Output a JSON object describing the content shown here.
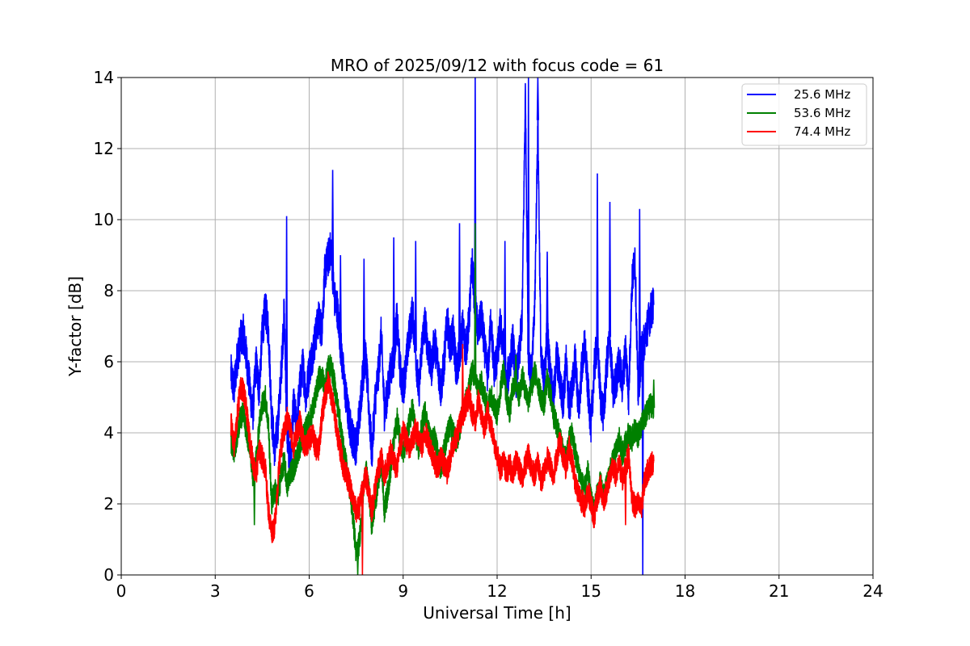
{
  "chart_data": {
    "type": "line",
    "title": "MRO of 2025/09/12 with focus code = 61",
    "xlabel": "Universal Time [h]",
    "ylabel": "Y-factor [dB]",
    "xlim": [
      0,
      24
    ],
    "ylim": [
      0,
      14
    ],
    "xticks": [
      0,
      3,
      6,
      9,
      12,
      15,
      18,
      21,
      24
    ],
    "yticks": [
      0,
      2,
      4,
      6,
      8,
      10,
      12,
      14
    ],
    "grid": true,
    "legend_position": "top-right",
    "series": [
      {
        "name": "25.6 MHz",
        "color": "#0000ff",
        "x": [
          3.5,
          3.6,
          3.7,
          3.8,
          3.9,
          4.0,
          4.1,
          4.2,
          4.3,
          4.4,
          4.5,
          4.6,
          4.7,
          4.8,
          4.9,
          5.0,
          5.1,
          5.2,
          5.3,
          5.4,
          5.5,
          5.6,
          5.7,
          5.8,
          5.9,
          6.0,
          6.1,
          6.2,
          6.3,
          6.4,
          6.5,
          6.6,
          6.7,
          6.8,
          6.9,
          7.0,
          7.1,
          7.2,
          7.3,
          7.4,
          7.5,
          7.6,
          7.7,
          7.8,
          7.9,
          8.0,
          8.1,
          8.2,
          8.3,
          8.4,
          8.5,
          8.6,
          8.7,
          8.8,
          8.9,
          9.0,
          9.1,
          9.2,
          9.3,
          9.4,
          9.5,
          9.6,
          9.7,
          9.8,
          9.9,
          10.0,
          10.1,
          10.2,
          10.3,
          10.4,
          10.5,
          10.6,
          10.7,
          10.8,
          10.9,
          11.0,
          11.1,
          11.2,
          11.3,
          11.4,
          11.5,
          11.6,
          11.7,
          11.8,
          11.9,
          12.0,
          12.1,
          12.2,
          12.3,
          12.4,
          12.5,
          12.6,
          12.7,
          12.8,
          12.9,
          13.0,
          13.1,
          13.2,
          13.3,
          13.4,
          13.5,
          13.6,
          13.7,
          13.8,
          13.9,
          14.0,
          14.1,
          14.2,
          14.3,
          14.4,
          14.5,
          14.6,
          14.7,
          14.8,
          14.9,
          15.0,
          15.1,
          15.2,
          15.3,
          15.4,
          15.5,
          15.6,
          15.7,
          15.8,
          15.9,
          16.0,
          16.1,
          16.2,
          16.3,
          16.4,
          16.5,
          16.6,
          16.7,
          16.8,
          16.9,
          17.0
        ],
        "y": [
          5.7,
          5.2,
          6.1,
          6.6,
          6.8,
          6.1,
          5.3,
          4.5,
          6.0,
          5.2,
          6.8,
          7.5,
          6.9,
          4.5,
          3.5,
          4.2,
          5.6,
          7.4,
          3.9,
          3.1,
          4.8,
          4.2,
          5.3,
          5.9,
          5.0,
          5.8,
          6.2,
          6.7,
          7.2,
          6.9,
          8.5,
          8.9,
          9.2,
          7.8,
          7.5,
          6.5,
          5.6,
          4.8,
          4.2,
          3.8,
          3.6,
          4.5,
          5.5,
          6.2,
          4.8,
          3.4,
          4.9,
          5.6,
          6.8,
          4.6,
          5.1,
          5.8,
          6.1,
          7.2,
          5.8,
          5.2,
          6.0,
          6.8,
          7.4,
          6.3,
          5.1,
          6.5,
          7.1,
          6.3,
          5.8,
          6.6,
          6.0,
          5.2,
          5.9,
          7.2,
          6.4,
          6.8,
          5.7,
          6.2,
          7.0,
          6.3,
          7.1,
          8.8,
          7.5,
          6.8,
          7.3,
          6.4,
          5.6,
          7.2,
          5.8,
          6.1,
          7.0,
          6.4,
          5.3,
          5.9,
          6.6,
          5.5,
          6.1,
          7.3,
          13.5,
          6.2,
          5.6,
          7.5,
          12.8,
          6.0,
          5.4,
          6.9,
          5.6,
          4.9,
          6.2,
          5.5,
          4.8,
          6.0,
          4.7,
          5.3,
          6.1,
          4.6,
          5.8,
          6.5,
          5.2,
          4.2,
          5.8,
          6.6,
          5.0,
          4.5,
          5.9,
          6.7,
          5.1,
          5.5,
          6.0,
          5.3,
          6.4,
          5.0,
          8.1,
          9.0,
          5.1,
          6.2,
          6.6,
          7.0,
          7.4,
          7.6
        ],
        "spikes": [
          [
            5.28,
            10.1
          ],
          [
            6.75,
            11.4
          ],
          [
            7.0,
            9.0
          ],
          [
            7.75,
            8.9
          ],
          [
            8.7,
            9.5
          ],
          [
            9.4,
            9.4
          ],
          [
            10.8,
            9.9
          ],
          [
            11.3,
            14.0
          ],
          [
            12.25,
            9.4
          ],
          [
            13.0,
            14.0
          ],
          [
            13.3,
            14.0
          ],
          [
            13.6,
            9.1
          ],
          [
            15.2,
            11.3
          ],
          [
            15.6,
            10.5
          ],
          [
            16.55,
            10.3
          ],
          [
            16.65,
            0.0
          ]
        ]
      },
      {
        "name": "53.6 MHz",
        "color": "#008000",
        "x": [
          3.5,
          3.6,
          3.7,
          3.8,
          3.9,
          4.0,
          4.1,
          4.2,
          4.3,
          4.4,
          4.5,
          4.6,
          4.7,
          4.8,
          4.9,
          5.0,
          5.1,
          5.2,
          5.3,
          5.4,
          5.5,
          5.6,
          5.7,
          5.8,
          5.9,
          6.0,
          6.1,
          6.2,
          6.3,
          6.4,
          6.5,
          6.6,
          6.7,
          6.8,
          6.9,
          7.0,
          7.1,
          7.2,
          7.3,
          7.4,
          7.5,
          7.6,
          7.7,
          7.8,
          7.9,
          8.0,
          8.1,
          8.2,
          8.3,
          8.4,
          8.5,
          8.6,
          8.7,
          8.8,
          8.9,
          9.0,
          9.1,
          9.2,
          9.3,
          9.4,
          9.5,
          9.6,
          9.7,
          9.8,
          9.9,
          10.0,
          10.1,
          10.2,
          10.3,
          10.4,
          10.5,
          10.6,
          10.7,
          10.8,
          10.9,
          11.0,
          11.1,
          11.2,
          11.3,
          11.4,
          11.5,
          11.6,
          11.7,
          11.8,
          11.9,
          12.0,
          12.1,
          12.2,
          12.3,
          12.4,
          12.5,
          12.6,
          12.7,
          12.8,
          12.9,
          13.0,
          13.1,
          13.2,
          13.3,
          13.4,
          13.5,
          13.6,
          13.7,
          13.8,
          13.9,
          14.0,
          14.1,
          14.2,
          14.3,
          14.4,
          14.5,
          14.6,
          14.7,
          14.8,
          14.9,
          15.0,
          15.1,
          15.2,
          15.3,
          15.4,
          15.5,
          15.6,
          15.7,
          15.8,
          15.9,
          16.0,
          16.1,
          16.2,
          16.3,
          16.4,
          16.5,
          16.6,
          16.7,
          16.8,
          16.9,
          17.0
        ],
        "y": [
          3.8,
          3.5,
          3.9,
          4.4,
          4.6,
          4.0,
          3.7,
          2.8,
          3.2,
          4.2,
          4.8,
          5.0,
          4.2,
          2.0,
          2.4,
          2.2,
          2.8,
          3.2,
          2.5,
          2.9,
          3.0,
          3.3,
          3.6,
          3.9,
          4.1,
          4.3,
          4.6,
          5.0,
          5.5,
          5.6,
          5.3,
          5.8,
          5.9,
          5.4,
          4.8,
          4.2,
          3.5,
          3.0,
          2.4,
          1.6,
          0.6,
          0.9,
          2.1,
          3.0,
          2.4,
          1.4,
          2.0,
          2.6,
          3.3,
          1.8,
          2.3,
          3.0,
          3.7,
          4.4,
          3.9,
          3.4,
          3.8,
          4.3,
          4.7,
          4.0,
          3.5,
          4.2,
          4.6,
          4.1,
          3.7,
          3.9,
          3.4,
          3.0,
          3.5,
          3.9,
          4.2,
          4.0,
          3.7,
          4.1,
          4.6,
          4.9,
          5.2,
          5.8,
          5.5,
          5.2,
          5.4,
          5.0,
          4.7,
          5.1,
          4.8,
          4.5,
          5.2,
          5.8,
          5.0,
          4.6,
          5.3,
          5.5,
          5.0,
          5.6,
          5.2,
          4.9,
          5.3,
          5.7,
          5.4,
          5.0,
          4.8,
          5.5,
          5.1,
          4.5,
          4.2,
          3.9,
          3.5,
          3.2,
          3.8,
          4.0,
          3.4,
          3.0,
          2.6,
          2.4,
          2.9,
          2.1,
          1.8,
          2.3,
          2.6,
          2.2,
          2.5,
          2.9,
          3.2,
          3.5,
          3.8,
          3.4,
          3.7,
          4.0,
          3.8,
          4.1,
          3.9,
          4.2,
          4.4,
          4.6,
          4.8,
          4.7
        ],
        "spikes": [
          [
            4.25,
            1.4
          ],
          [
            6.6,
            6.1
          ],
          [
            7.55,
            0.0
          ],
          [
            11.3,
            9.9
          ],
          [
            12.6,
            6.2
          ],
          [
            17.0,
            5.5
          ]
        ]
      },
      {
        "name": "74.4 MHz",
        "color": "#ff0000",
        "x": [
          3.5,
          3.6,
          3.7,
          3.8,
          3.9,
          4.0,
          4.1,
          4.2,
          4.3,
          4.4,
          4.5,
          4.6,
          4.7,
          4.8,
          4.9,
          5.0,
          5.1,
          5.2,
          5.3,
          5.4,
          5.5,
          5.6,
          5.7,
          5.8,
          5.9,
          6.0,
          6.1,
          6.2,
          6.3,
          6.4,
          6.5,
          6.6,
          6.7,
          6.8,
          6.9,
          7.0,
          7.1,
          7.2,
          7.3,
          7.4,
          7.5,
          7.6,
          7.7,
          7.8,
          7.9,
          8.0,
          8.1,
          8.2,
          8.3,
          8.4,
          8.5,
          8.6,
          8.7,
          8.8,
          8.9,
          9.0,
          9.1,
          9.2,
          9.3,
          9.4,
          9.5,
          9.6,
          9.7,
          9.8,
          9.9,
          10.0,
          10.1,
          10.2,
          10.3,
          10.4,
          10.5,
          10.6,
          10.7,
          10.8,
          10.9,
          11.0,
          11.1,
          11.2,
          11.3,
          11.4,
          11.5,
          11.6,
          11.7,
          11.8,
          11.9,
          12.0,
          12.1,
          12.2,
          12.3,
          12.4,
          12.5,
          12.6,
          12.7,
          12.8,
          12.9,
          13.0,
          13.1,
          13.2,
          13.3,
          13.4,
          13.5,
          13.6,
          13.7,
          13.8,
          13.9,
          14.0,
          14.1,
          14.2,
          14.3,
          14.4,
          14.5,
          14.6,
          14.7,
          14.8,
          14.9,
          15.0,
          15.1,
          15.2,
          15.3,
          15.4,
          15.5,
          15.6,
          15.7,
          15.8,
          15.9,
          16.0,
          16.1,
          16.2,
          16.3,
          16.4,
          16.5,
          16.6,
          16.7,
          16.8,
          16.9,
          17.0
        ],
        "y": [
          4.3,
          3.6,
          4.4,
          5.3,
          5.2,
          4.6,
          3.8,
          3.2,
          2.8,
          3.5,
          3.3,
          3.0,
          1.8,
          1.2,
          1.4,
          2.6,
          3.6,
          4.0,
          4.4,
          4.1,
          3.6,
          4.0,
          4.3,
          3.8,
          3.6,
          3.8,
          4.0,
          3.6,
          3.5,
          4.4,
          5.0,
          5.4,
          5.1,
          4.6,
          4.0,
          3.5,
          3.0,
          2.8,
          2.5,
          2.1,
          1.8,
          1.9,
          2.4,
          2.8,
          2.4,
          1.8,
          2.4,
          2.9,
          3.3,
          2.8,
          3.1,
          3.5,
          3.2,
          3.0,
          3.6,
          4.0,
          3.8,
          3.5,
          3.8,
          4.1,
          3.9,
          3.6,
          4.0,
          3.8,
          3.5,
          3.2,
          3.0,
          3.3,
          3.1,
          2.9,
          3.3,
          3.7,
          3.9,
          4.2,
          4.5,
          4.8,
          5.0,
          4.6,
          4.3,
          4.9,
          4.5,
          4.1,
          4.6,
          4.2,
          3.8,
          3.4,
          3.0,
          3.2,
          2.9,
          3.1,
          2.8,
          3.2,
          3.0,
          2.7,
          3.1,
          3.4,
          3.0,
          2.8,
          3.2,
          2.6,
          2.9,
          3.3,
          3.1,
          2.8,
          3.3,
          3.8,
          3.4,
          3.0,
          3.6,
          3.2,
          2.6,
          2.3,
          2.1,
          1.9,
          2.4,
          2.0,
          1.6,
          2.2,
          2.5,
          2.1,
          2.4,
          2.8,
          3.0,
          2.8,
          3.1,
          2.7,
          3.0,
          3.4,
          2.2,
          1.9,
          2.0,
          1.8,
          2.6,
          2.9,
          3.1,
          3.2
        ],
        "spikes": [
          [
            7.7,
            0.0
          ],
          [
            10.9,
            6.5
          ],
          [
            16.1,
            1.4
          ]
        ]
      }
    ]
  }
}
